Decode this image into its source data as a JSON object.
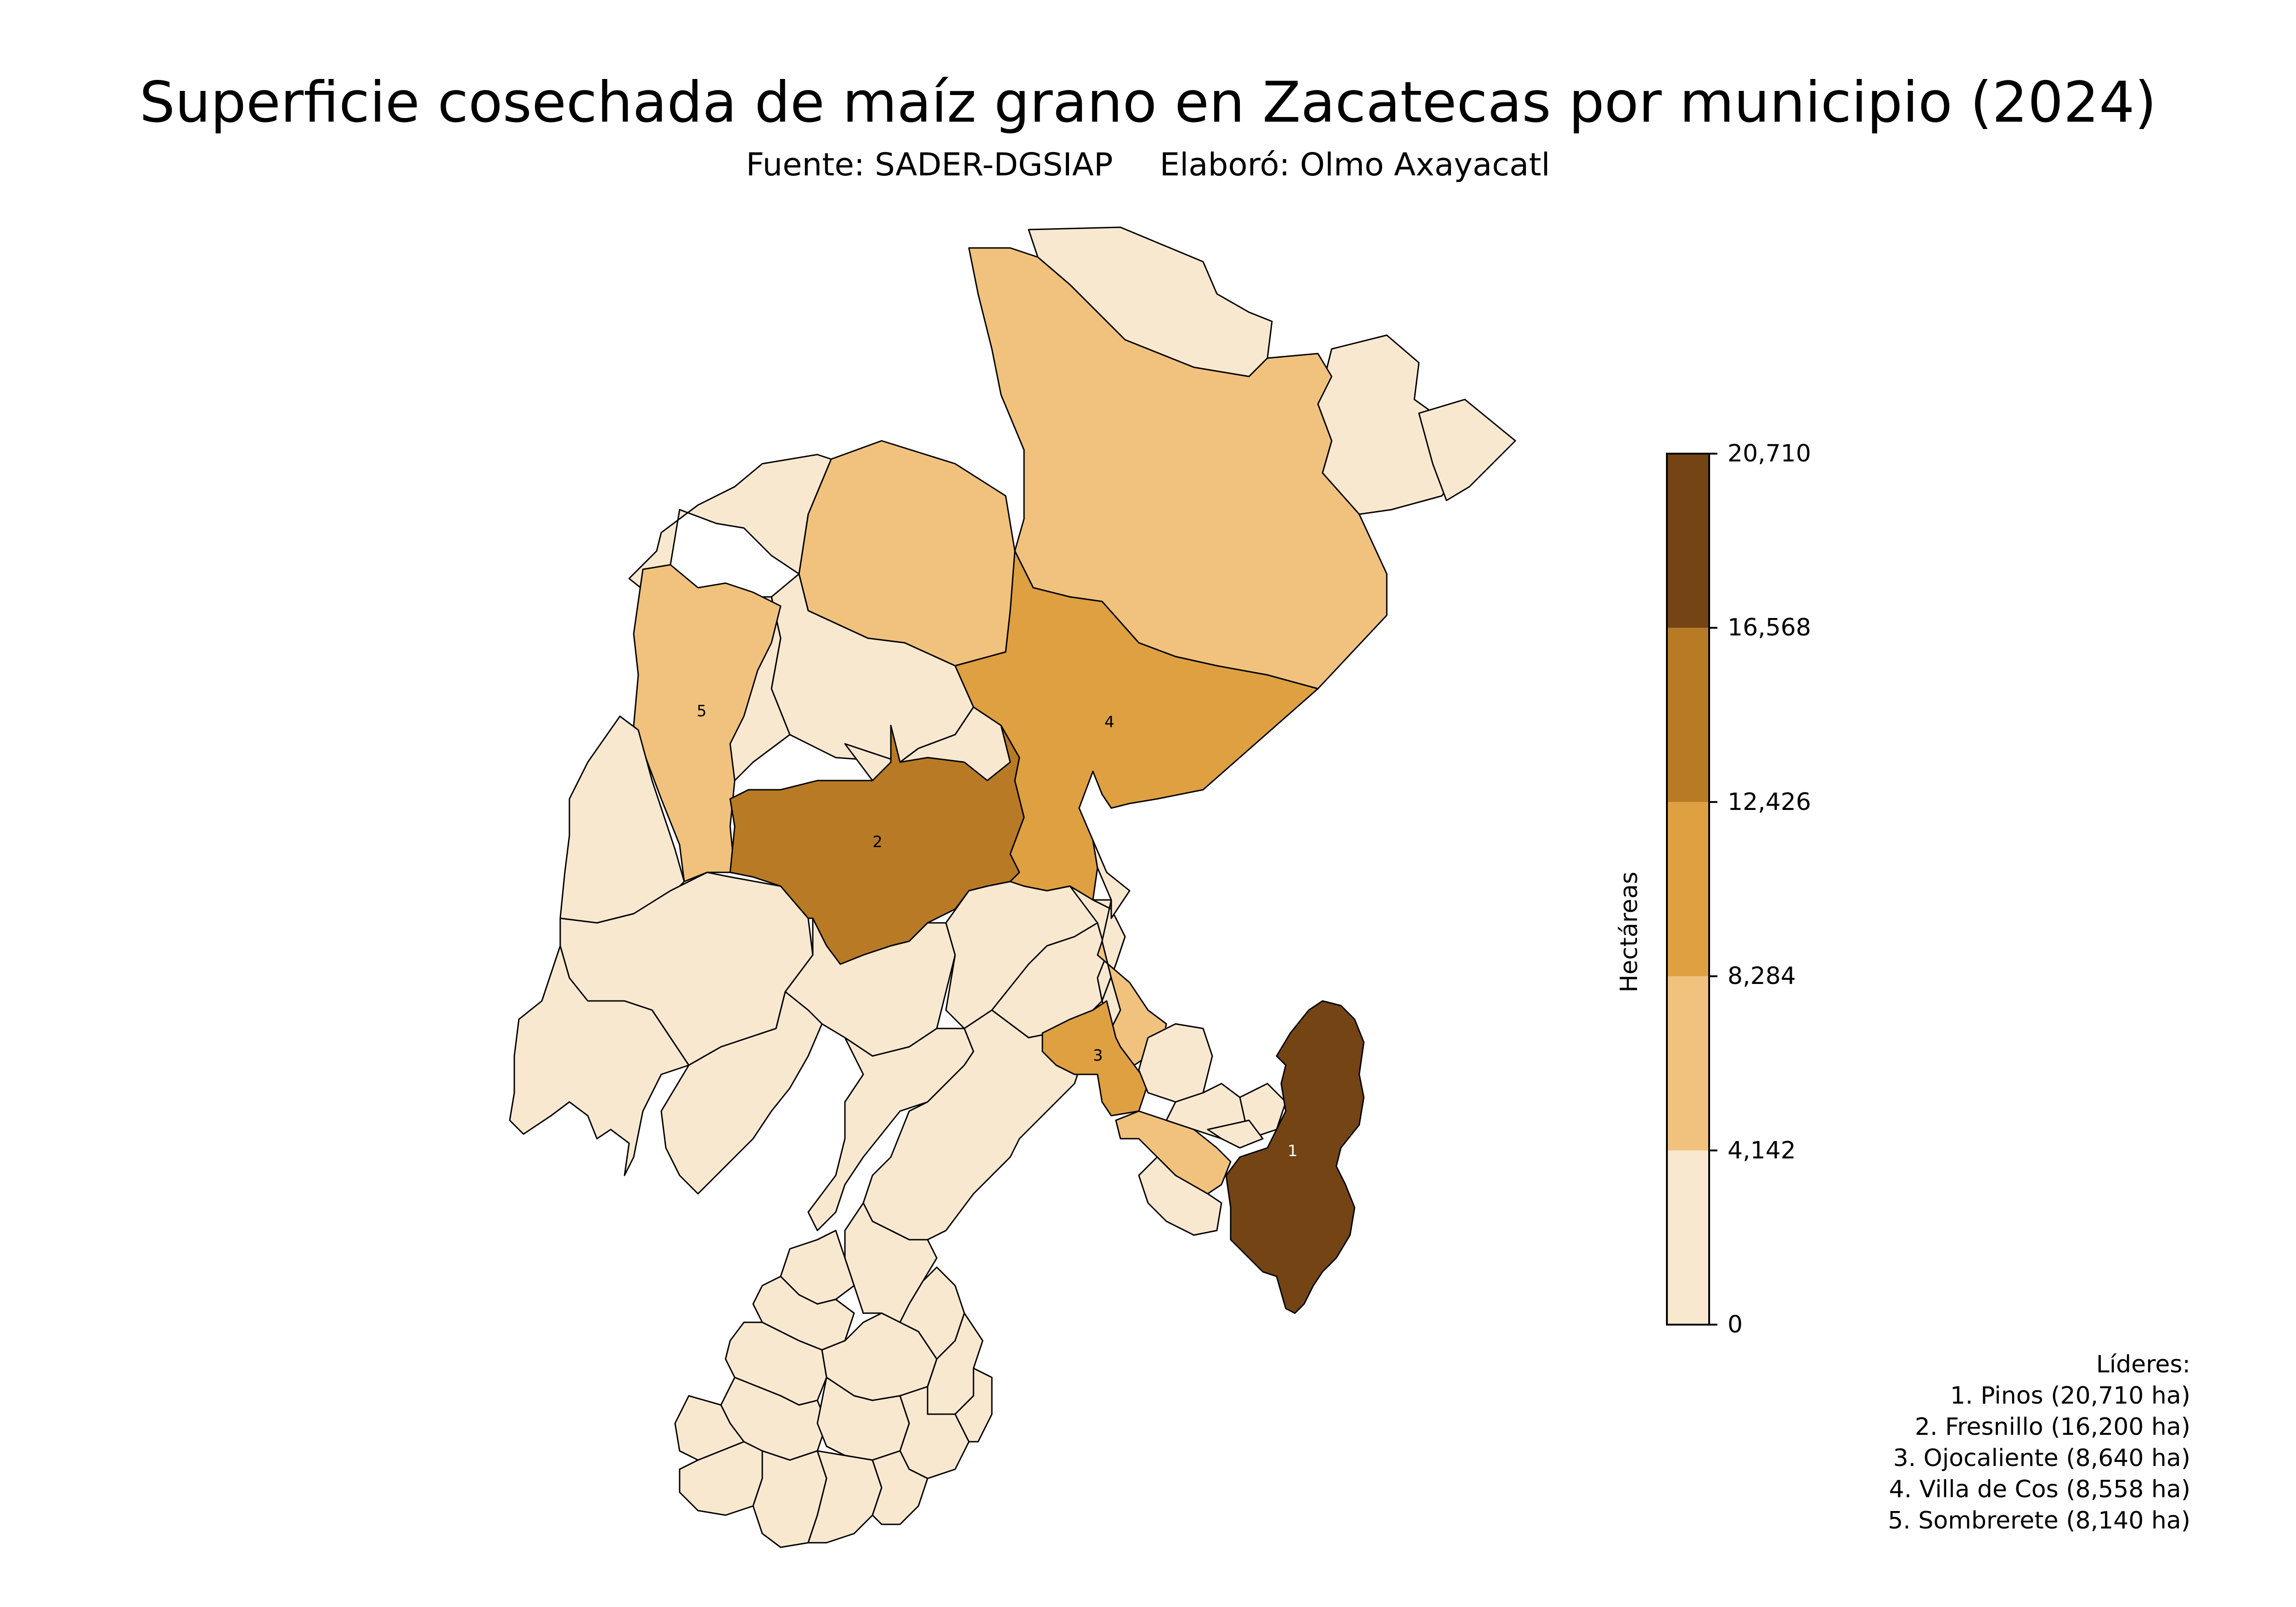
{
  "title": "Superficie cosechada de maíz grano en Zacatecas por municipio (2024)",
  "subtitle": {
    "source": "Fuente: SADER-DGSIAP",
    "author": "Elaboró: Olmo Axayacatl"
  },
  "colors": {
    "class_colors": [
      "#f9e8d0",
      "#f0c27d",
      "#dea041",
      "#b87a24",
      "#744415"
    ],
    "outline": "#000000",
    "background": "#ffffff"
  },
  "colorbar": {
    "label": "Hectáreas",
    "tick_labels": [
      "0",
      "4,142",
      "8,284",
      "12,426",
      "16,568",
      "20,710"
    ],
    "tick_values": [
      0,
      4142,
      8284,
      12426,
      16568,
      20710
    ]
  },
  "map_labels": {
    "m1": "1",
    "m2": "2",
    "m3": "3",
    "m4": "4",
    "m5": "5"
  },
  "leaders": {
    "heading": "Líderes:",
    "items": [
      "1. Pinos (20,710 ha)",
      "2. Fresnillo (16,200 ha)",
      "3. Ojocaliente (8,640 ha)",
      "4. Villa de Cos (8,558 ha)",
      "5. Sombrerete (8,140 ha)"
    ]
  },
  "chart_data": {
    "type": "choropleth",
    "region": "Zacatecas",
    "year": "2024",
    "value_unit": "ha",
    "class_breaks": [
      0,
      4142,
      8284,
      12426,
      16568,
      20710
    ],
    "top_municipalities": [
      {
        "rank": 1,
        "name": "Pinos",
        "value": 20710
      },
      {
        "rank": 2,
        "name": "Fresnillo",
        "value": 16200
      },
      {
        "rank": 3,
        "name": "Ojocaliente",
        "value": 8640
      },
      {
        "rank": 4,
        "name": "Villa de Cos",
        "value": 8558
      },
      {
        "rank": 5,
        "name": "Sombrerete",
        "value": 8140
      }
    ]
  }
}
